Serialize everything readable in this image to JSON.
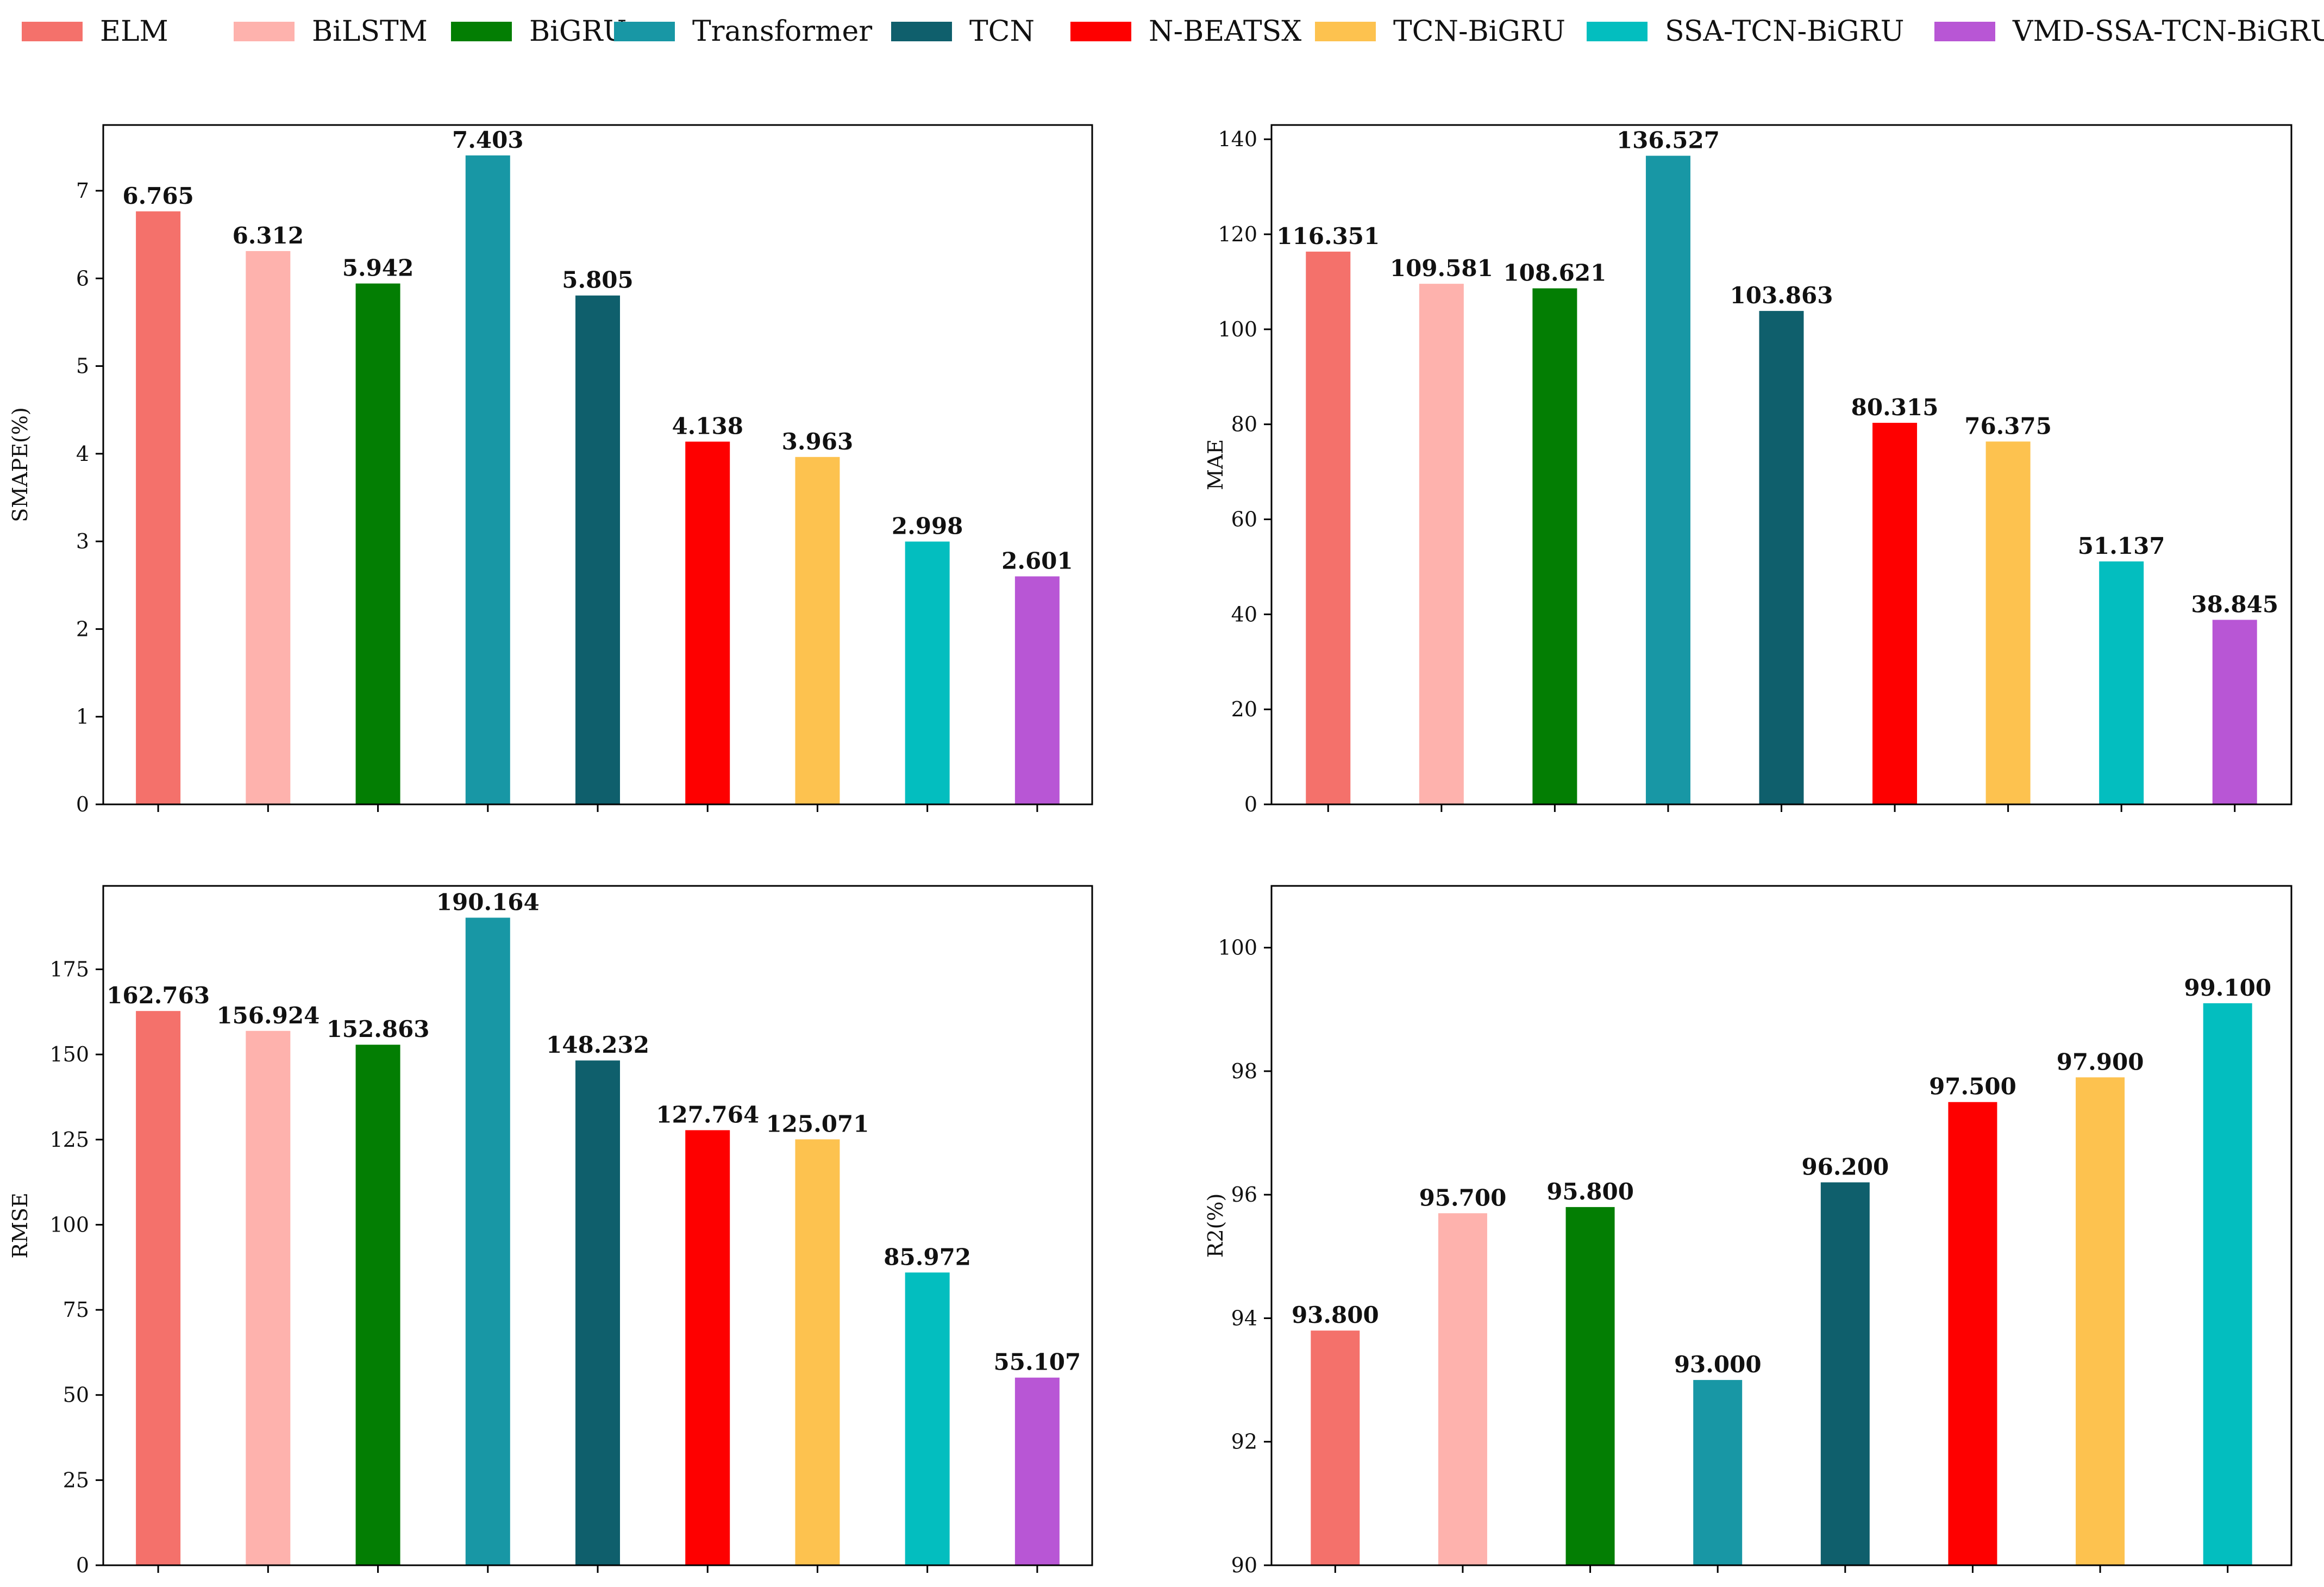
{
  "models": [
    {
      "name": "ELM",
      "color": "#f4716b"
    },
    {
      "name": "BiLSTM",
      "color": "#feb2ad"
    },
    {
      "name": "BiGRU",
      "color": "#037e03"
    },
    {
      "name": "Transformer",
      "color": "#1897a5"
    },
    {
      "name": "TCN",
      "color": "#0f5f6c"
    },
    {
      "name": "N-BEATSX",
      "color": "#fe0000"
    },
    {
      "name": "TCN-BiGRU",
      "color": "#fdc24f"
    },
    {
      "name": "SSA-TCN-BiGRU",
      "color": "#03bebf"
    },
    {
      "name": "VMD-SSA-TCN-BiGRU",
      "color": "#b856d5"
    }
  ],
  "chart_data": [
    {
      "type": "bar",
      "id": "smape",
      "ylabel": "SMAPE(%)",
      "ylim": [
        0,
        7.75
      ],
      "yticks": [
        "0",
        "1",
        "2",
        "3",
        "4",
        "5",
        "6",
        "7"
      ],
      "categories": [
        "ELM",
        "BiLSTM",
        "BiGRU",
        "Transformer",
        "TCN",
        "N-BEATSX",
        "TCN-BiGRU",
        "SSA-TCN-BiGRU",
        "VMD-SSA-TCN-BiGRU"
      ],
      "values": [
        6.765,
        6.312,
        5.942,
        7.403,
        5.805,
        4.138,
        3.963,
        2.998,
        2.601
      ],
      "labels": [
        "6.765",
        "6.312",
        "5.942",
        "7.403",
        "5.805",
        "4.138",
        "3.963",
        "2.998",
        "2.601"
      ]
    },
    {
      "type": "bar",
      "id": "mae",
      "ylabel": "MAE",
      "ylim": [
        0,
        143
      ],
      "yticks": [
        "0",
        "20",
        "40",
        "60",
        "80",
        "100",
        "120",
        "140"
      ],
      "categories": [
        "ELM",
        "BiLSTM",
        "BiGRU",
        "Transformer",
        "TCN",
        "N-BEATSX",
        "TCN-BiGRU",
        "SSA-TCN-BiGRU",
        "VMD-SSA-TCN-BiGRU"
      ],
      "values": [
        116.351,
        109.581,
        108.621,
        136.527,
        103.863,
        80.315,
        76.375,
        51.137,
        38.845
      ],
      "labels": [
        "116.351",
        "109.581",
        "108.621",
        "136.527",
        "103.863",
        "80.315",
        "76.375",
        "51.137",
        "38.845"
      ]
    },
    {
      "type": "bar",
      "id": "rmse",
      "ylabel": "RMSE",
      "ylim": [
        0,
        199.5
      ],
      "yticks": [
        "0",
        "25",
        "50",
        "75",
        "100",
        "125",
        "150",
        "175"
      ],
      "categories": [
        "ELM",
        "BiLSTM",
        "BiGRU",
        "Transformer",
        "TCN",
        "N-BEATSX",
        "TCN-BiGRU",
        "SSA-TCN-BiGRU",
        "VMD-SSA-TCN-BiGRU"
      ],
      "values": [
        162.763,
        156.924,
        152.863,
        190.164,
        148.232,
        127.764,
        125.071,
        85.972,
        55.107
      ],
      "labels": [
        "162.763",
        "156.924",
        "152.863",
        "190.164",
        "148.232",
        "127.764",
        "125.071",
        "85.972",
        "55.107"
      ]
    },
    {
      "type": "bar",
      "id": "r2",
      "ylabel": "R2(%)",
      "ylim": [
        90,
        101
      ],
      "yticks": [
        "90",
        "92",
        "94",
        "96",
        "98",
        "100"
      ],
      "categories": [
        "ELM",
        "BiLSTM",
        "BiGRU",
        "Transformer",
        "TCN",
        "N-BEATSX",
        "TCN-BiGRU",
        "SSA-TCN-BiGRU"
      ],
      "values": [
        93.8,
        95.7,
        95.8,
        93.0,
        96.2,
        97.5,
        97.9,
        99.1
      ],
      "labels": [
        "93.800",
        "95.700",
        "95.800",
        "93.000",
        "96.200",
        "97.500",
        "97.900",
        "99.100"
      ]
    }
  ]
}
